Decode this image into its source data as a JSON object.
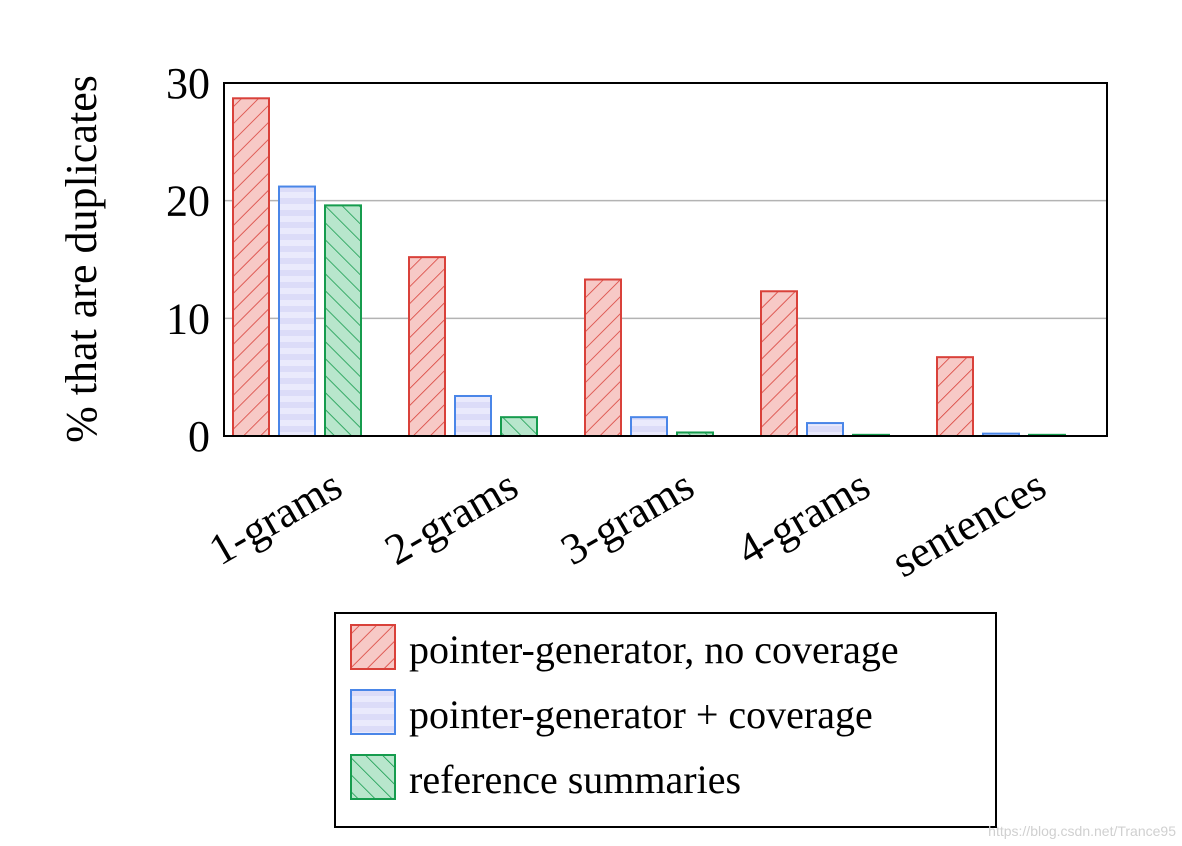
{
  "chart_data": {
    "type": "bar",
    "ylabel": "% that are duplicates",
    "xlabel": "",
    "ylim": [
      0,
      30
    ],
    "yticks": [
      "0",
      "10",
      "20",
      "30"
    ],
    "grid": true,
    "legend_position": "bottom",
    "categories": [
      "1-grams",
      "2-grams",
      "3-grams",
      "4-grams",
      "sentences"
    ],
    "series": [
      {
        "name": "pointer-generator, no coverage",
        "values": [
          28.7,
          15.2,
          13.3,
          12.3,
          6.7
        ],
        "stroke": "#d9413a",
        "fill": "#f7c9c6",
        "pattern": "diagonal-up"
      },
      {
        "name": "pointer-generator + coverage",
        "values": [
          21.2,
          3.4,
          1.6,
          1.1,
          0.2
        ],
        "stroke": "#4a86e8",
        "fill": "#dcdcf8",
        "pattern": "horizontal"
      },
      {
        "name": "reference summaries",
        "values": [
          19.6,
          1.6,
          0.3,
          0.1,
          0.1
        ],
        "stroke": "#169c4e",
        "fill": "#b8e6cc",
        "pattern": "diagonal-down"
      }
    ]
  },
  "watermark": "https://blog.csdn.net/Trance95"
}
